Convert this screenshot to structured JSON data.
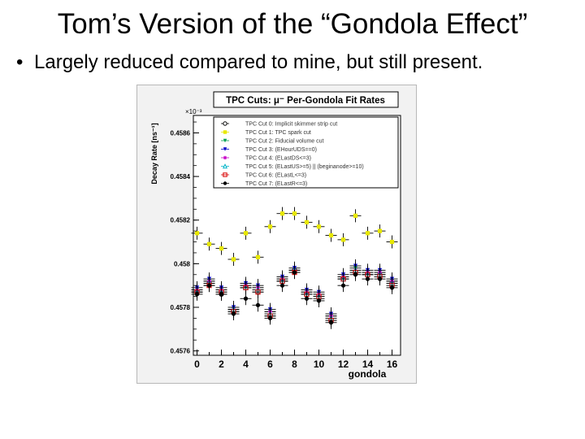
{
  "slide": {
    "title": "Tom’s Version of the “Gondola Effect”",
    "bullet": "Largely reduced compared to mine, but still present."
  },
  "chart_data": {
    "type": "scatter",
    "title": "TPC Cuts: μ⁻ Per-Gondola Fit Rates",
    "xlabel": "gondola",
    "ylabel": "Decay Rate [ns⁻¹]",
    "y_exponent_label": "×10⁻³",
    "xlim": [
      -0.3,
      16.7
    ],
    "ylim": [
      0.45758,
      0.45868
    ],
    "x_ticks": [
      0,
      2,
      4,
      6,
      8,
      10,
      12,
      14,
      16
    ],
    "x_tick_labels": [
      "0",
      "2",
      "4",
      "6",
      "8",
      "10",
      "12",
      "14",
      "16"
    ],
    "y_ticks": [
      0.4576,
      0.4578,
      0.458,
      0.4582,
      0.4584,
      0.4586
    ],
    "y_tick_labels": [
      "0.4576",
      "0.4578",
      "0.458",
      "0.4582",
      "0.4584",
      "0.4586"
    ],
    "grid": false,
    "legend_position": "top",
    "x": [
      0,
      1,
      2,
      3,
      4,
      5,
      6,
      7,
      8,
      9,
      10,
      11,
      12,
      13,
      14,
      15,
      16
    ],
    "series": [
      {
        "name": "TPC Cut 0: Implicit skimmer strip cut",
        "color": "#000000",
        "marker": "circle-open",
        "values": [
          0.45787,
          0.45791,
          0.45786,
          0.45778,
          0.45789,
          0.45787,
          0.45776,
          0.45792,
          0.45797,
          0.45786,
          0.45784,
          0.45774,
          0.45793,
          0.45796,
          0.45795,
          0.45795,
          0.45791
        ]
      },
      {
        "name": "TPC Cut 1: TPC spark cut",
        "color": "#e8e800",
        "marker": "square",
        "values": [
          0.45814,
          0.45809,
          0.45807,
          0.45802,
          0.45814,
          0.45803,
          0.45817,
          0.45823,
          0.45823,
          0.45819,
          0.45817,
          0.45813,
          0.45811,
          0.45822,
          0.45814,
          0.45815,
          0.4581
        ]
      },
      {
        "name": "TPC Cut 2: Fiducial volume cut",
        "color": "#00a050",
        "marker": "triangle-down",
        "values": [
          0.45788,
          0.45792,
          0.45788,
          0.45779,
          0.4579,
          0.45789,
          0.45778,
          0.45793,
          0.45797,
          0.45787,
          0.45786,
          0.45776,
          0.45794,
          0.45798,
          0.45796,
          0.45796,
          0.45792
        ]
      },
      {
        "name": "TPC Cut 3: (EHourUDS==0)",
        "color": "#0000c8",
        "marker": "triangle-down",
        "values": [
          0.45789,
          0.45793,
          0.45789,
          0.4578,
          0.45791,
          0.4579,
          0.45779,
          0.45794,
          0.45798,
          0.45788,
          0.45787,
          0.45777,
          0.45795,
          0.45799,
          0.45797,
          0.45797,
          0.45793
        ]
      },
      {
        "name": "TPC Cut 4: (ELastDS<=3)",
        "color": "#c800c8",
        "marker": "star",
        "values": [
          0.45788,
          0.45792,
          0.45788,
          0.45779,
          0.4579,
          0.45789,
          0.45778,
          0.45793,
          0.45797,
          0.45787,
          0.45786,
          0.45776,
          0.45794,
          0.45797,
          0.45796,
          0.45796,
          0.45792
        ]
      },
      {
        "name": "TPC Cut 5: (ELastUS>=5) || (beginanode>=10)",
        "color": "#00b4c8",
        "marker": "triangle-open",
        "values": [
          0.45787,
          0.45791,
          0.45787,
          0.45779,
          0.45789,
          0.45788,
          0.45777,
          0.45792,
          0.45797,
          0.45786,
          0.45785,
          0.45775,
          0.45793,
          0.45797,
          0.45795,
          0.45795,
          0.45791
        ]
      },
      {
        "name": "TPC Cut 6: (ELastL<=3)",
        "color": "#d80000",
        "marker": "square-open",
        "values": [
          0.45787,
          0.4579,
          0.45787,
          0.45778,
          0.45789,
          0.45787,
          0.45776,
          0.45792,
          0.45796,
          0.45786,
          0.45785,
          0.45774,
          0.45793,
          0.45796,
          0.45795,
          0.45794,
          0.4579
        ]
      },
      {
        "name": "TPC Cut 7: (ELastR<=3)",
        "color": "#000000",
        "marker": "circle",
        "values": [
          0.45786,
          0.4579,
          0.45786,
          0.45777,
          0.45784,
          0.45781,
          0.45775,
          0.4579,
          0.45796,
          0.45784,
          0.45783,
          0.45773,
          0.4579,
          0.45795,
          0.45793,
          0.45793,
          0.45789
        ]
      }
    ]
  }
}
